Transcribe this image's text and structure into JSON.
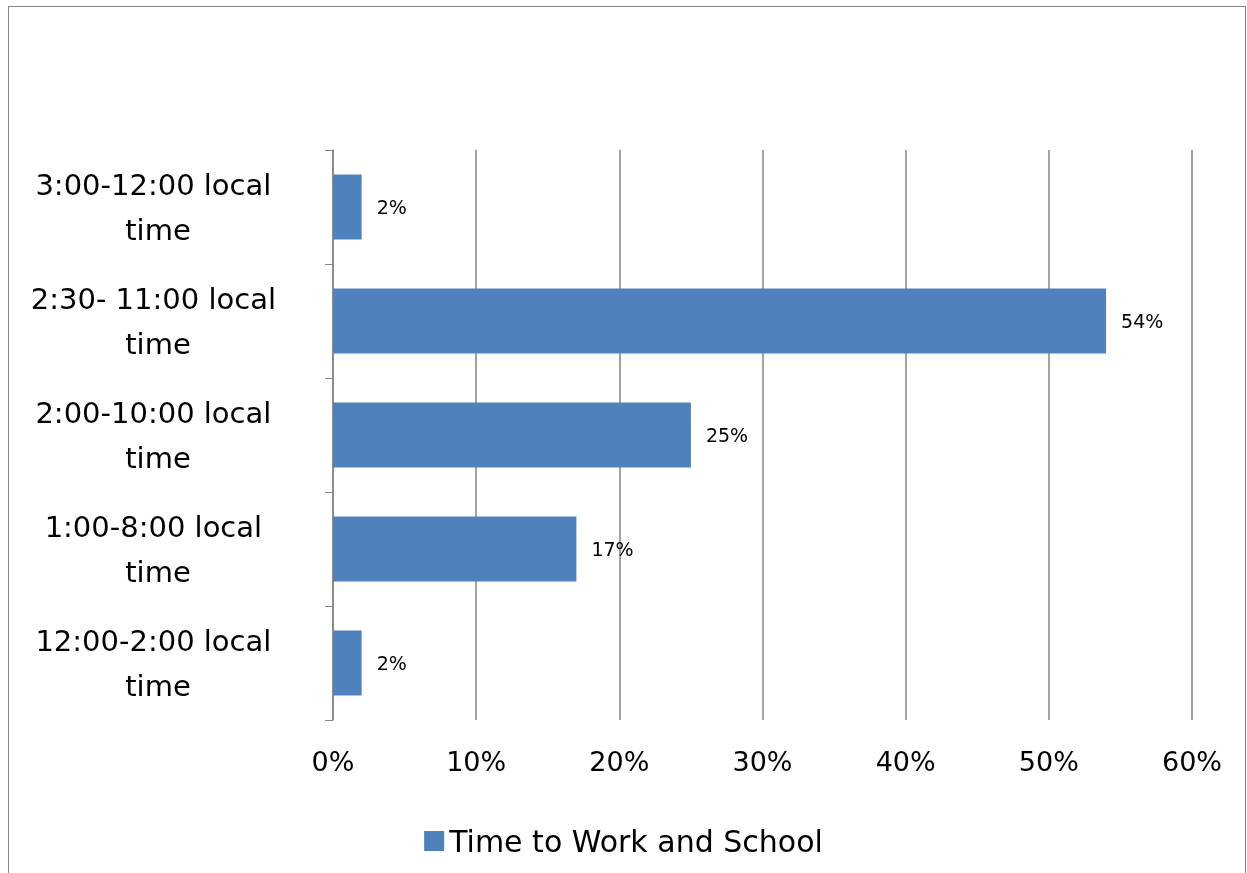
{
  "chart_data": {
    "type": "bar",
    "orientation": "horizontal",
    "categories": [
      "3:00-12:00 local time",
      "2:30- 11:00 local time",
      "2:00-10:00 local time",
      "1:00-8:00 local time",
      "12:00-2:00 local time"
    ],
    "series": [
      {
        "name": "Time to Work and School",
        "color": "#4f81bd",
        "values": [
          2,
          54,
          25,
          17,
          2
        ],
        "value_labels": [
          "2%",
          "54%",
          "25%",
          "17%",
          "2%"
        ]
      }
    ],
    "xlim": [
      0,
      60
    ],
    "xticks": [
      {
        "value": 0,
        "label": "0%"
      },
      {
        "value": 10,
        "label": "10%"
      },
      {
        "value": 20,
        "label": "20%"
      },
      {
        "value": 30,
        "label": "30%"
      },
      {
        "value": 40,
        "label": "40%"
      },
      {
        "value": 50,
        "label": "50%"
      },
      {
        "value": 60,
        "label": "60%"
      }
    ],
    "grid": "x",
    "legend": "bottom"
  }
}
